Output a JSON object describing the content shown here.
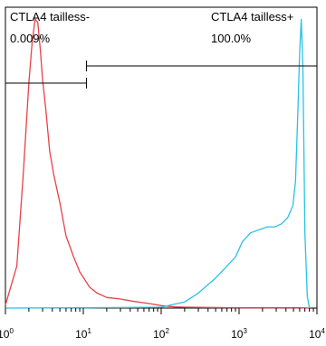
{
  "chart_data": {
    "type": "line",
    "xscale": "log",
    "xlim": [
      1,
      10000
    ],
    "x_ticks": [
      {
        "base": "10",
        "exp": "0"
      },
      {
        "base": "10",
        "exp": "1"
      },
      {
        "base": "10",
        "exp": "2"
      },
      {
        "base": "10",
        "exp": "3"
      },
      {
        "base": "10",
        "exp": "4"
      }
    ],
    "ylim": [
      0,
      1.0
    ],
    "grid": false,
    "gates": [
      {
        "name": "CTLA4 tailless-",
        "percent": "0.009%",
        "x_range": [
          1,
          11
        ]
      },
      {
        "name": "CTLA4 tailless+",
        "percent": "100.0%",
        "x_range": [
          11,
          10000
        ]
      }
    ],
    "series": [
      {
        "color": "#e8414a",
        "x": [
          1.0,
          1.4,
          1.7,
          2.0,
          2.2,
          2.4,
          2.6,
          2.8,
          3.0,
          3.3,
          3.7,
          4.2,
          5.0,
          6.0,
          7.5,
          9.0,
          12,
          15,
          20,
          30,
          45,
          70,
          100,
          150,
          200,
          400,
          1000,
          3000,
          6000,
          8000
        ],
        "y": [
          0.01,
          0.14,
          0.45,
          0.75,
          0.88,
          0.96,
          0.95,
          0.86,
          0.76,
          0.66,
          0.52,
          0.44,
          0.35,
          0.24,
          0.17,
          0.12,
          0.07,
          0.05,
          0.035,
          0.03,
          0.022,
          0.015,
          0.008,
          0.004,
          0.003,
          0.002,
          0.001,
          0.001,
          0.001,
          0.0
        ]
      },
      {
        "color": "#29c2e8",
        "x": [
          1.0,
          10,
          100,
          200,
          300,
          500,
          700,
          900,
          1100,
          1400,
          1800,
          2300,
          2900,
          3500,
          4200,
          4900,
          5300,
          5700,
          6000,
          6300,
          6600,
          7000,
          7500,
          8000
        ],
        "y": [
          0.0,
          0.001,
          0.003,
          0.02,
          0.05,
          0.1,
          0.14,
          0.17,
          0.22,
          0.25,
          0.26,
          0.27,
          0.27,
          0.28,
          0.3,
          0.34,
          0.42,
          0.66,
          0.85,
          0.96,
          0.8,
          0.25,
          0.04,
          0.0
        ]
      }
    ]
  }
}
